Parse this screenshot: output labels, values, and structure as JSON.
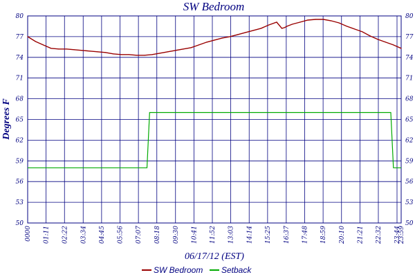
{
  "chart_data": {
    "type": "line",
    "title": "SW Bedroom",
    "xlabel": "06/17/12 (EST)",
    "ylabel": "Degrees F",
    "ylim": [
      50,
      80
    ],
    "yticks": [
      50,
      53,
      56,
      59,
      62,
      65,
      68,
      71,
      74,
      77,
      80
    ],
    "ytick_labels": [
      "50",
      "53",
      "56",
      "59",
      "62",
      "65",
      "68",
      "71",
      "74",
      "77",
      "80"
    ],
    "xlim": [
      0,
      1440
    ],
    "xticks": [
      0,
      71,
      142,
      214,
      285,
      356,
      427,
      498,
      570,
      641,
      712,
      783,
      854,
      925,
      997,
      1068,
      1139,
      1210,
      1281,
      1352,
      1424,
      1440
    ],
    "xtick_labels": [
      "0000",
      "01:11",
      "02:22",
      "03:34",
      "04:45",
      "05:56",
      "07:07",
      "08:18",
      "09:30",
      "10:41",
      "11:52",
      "13:03",
      "14:14",
      "15:25",
      "16:37",
      "17:48",
      "18:59",
      "20:10",
      "21:21",
      "22:32",
      "23:44",
      "23:59"
    ],
    "grid": true,
    "legend_position": "bottom",
    "series": [
      {
        "name": "SW Bedroom",
        "color": "#990000",
        "x": [
          0,
          30,
          60,
          90,
          120,
          150,
          180,
          210,
          240,
          270,
          300,
          330,
          360,
          390,
          420,
          450,
          480,
          510,
          540,
          570,
          600,
          630,
          660,
          690,
          720,
          750,
          780,
          810,
          840,
          870,
          900,
          930,
          960,
          980,
          990,
          1000,
          1020,
          1050,
          1080,
          1110,
          1140,
          1170,
          1200,
          1230,
          1260,
          1290,
          1320,
          1350,
          1380,
          1410,
          1440
        ],
        "y": [
          77.0,
          76.3,
          75.8,
          75.3,
          75.2,
          75.2,
          75.1,
          75.0,
          74.9,
          74.8,
          74.7,
          74.5,
          74.4,
          74.4,
          74.3,
          74.3,
          74.4,
          74.6,
          74.8,
          75.0,
          75.2,
          75.4,
          75.8,
          76.2,
          76.5,
          76.8,
          77.0,
          77.3,
          77.6,
          77.9,
          78.2,
          78.7,
          79.1,
          78.2,
          78.3,
          78.5,
          78.8,
          79.1,
          79.4,
          79.5,
          79.5,
          79.3,
          79.0,
          78.5,
          78.1,
          77.7,
          77.1,
          76.6,
          76.2,
          75.8,
          75.3
        ]
      },
      {
        "name": "Setback",
        "color": "#00aa00",
        "step": true,
        "x": [
          0,
          460,
          470,
          1400,
          1410,
          1440
        ],
        "y": [
          58,
          58,
          66,
          66,
          58,
          58
        ]
      }
    ]
  }
}
